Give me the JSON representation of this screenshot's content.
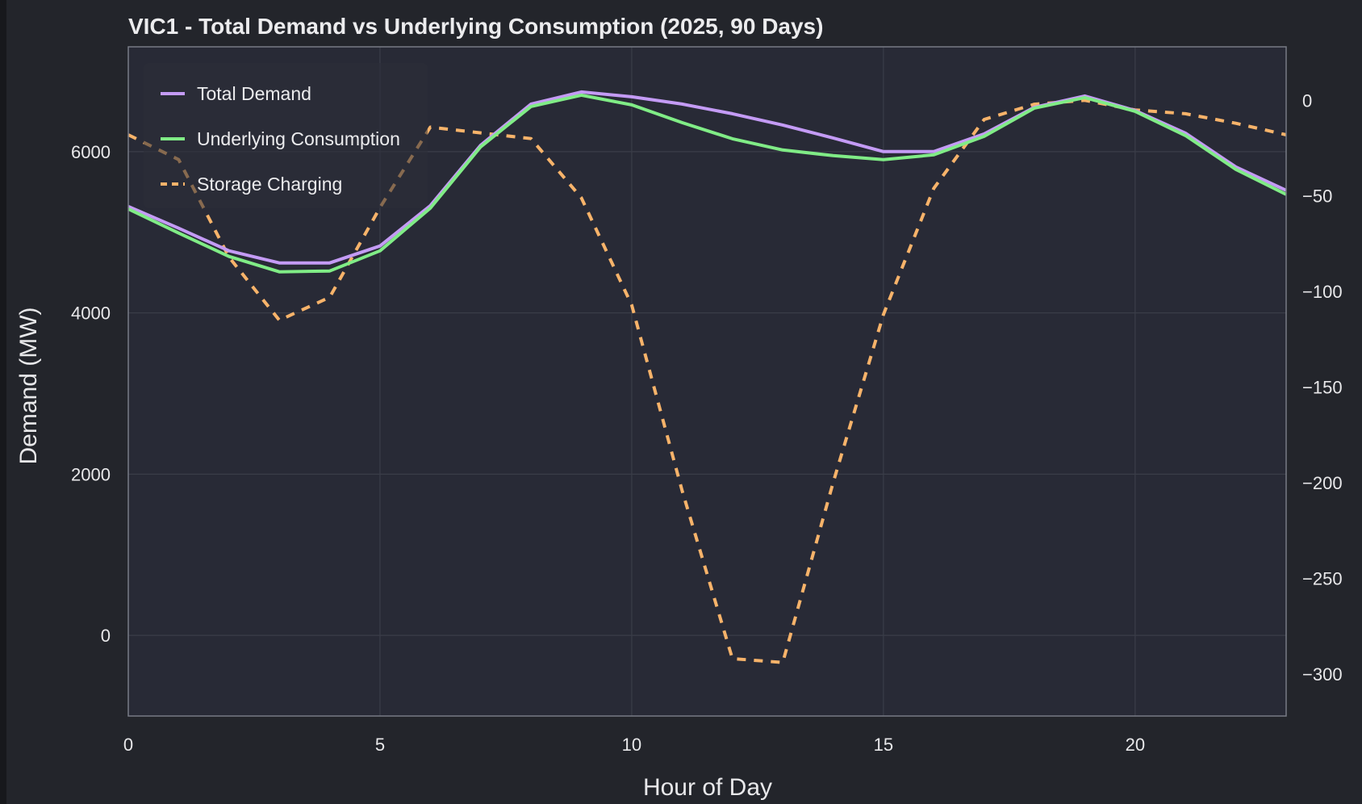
{
  "chart_data": {
    "type": "line",
    "title": "VIC1 - Total Demand vs Underlying Consumption (2025, 90 Days)",
    "xlabel": "Hour of Day",
    "ylabel": "Demand (MW)",
    "y2label": "",
    "xlim": [
      0,
      23
    ],
    "ylim": [
      -1000,
      7300
    ],
    "y2lim": [
      -322,
      28
    ],
    "xticks": [
      "0",
      "5",
      "10",
      "15",
      "20"
    ],
    "yticks": [
      "0",
      "2000",
      "4000",
      "6000"
    ],
    "y2ticks": [
      "0",
      "−50",
      "−100",
      "−150",
      "−200",
      "−250",
      "−300"
    ],
    "grid": true,
    "legend_position": "top-left",
    "x": [
      0,
      1,
      2,
      3,
      4,
      5,
      6,
      7,
      8,
      9,
      10,
      11,
      12,
      13,
      14,
      15,
      16,
      17,
      18,
      19,
      20,
      21,
      22,
      23
    ],
    "series": [
      {
        "name": "Total Demand",
        "axis": "left",
        "color": "#c49bf5",
        "style": "solid",
        "values": [
          5320,
          5050,
          4770,
          4620,
          4620,
          4830,
          5330,
          6080,
          6590,
          6740,
          6680,
          6590,
          6470,
          6330,
          6170,
          6000,
          6000,
          6220,
          6550,
          6690,
          6510,
          6230,
          5810,
          5520
        ]
      },
      {
        "name": "Underlying Consumption",
        "axis": "left",
        "color": "#80ec86",
        "style": "solid",
        "values": [
          5290,
          4990,
          4700,
          4510,
          4520,
          4770,
          5300,
          6060,
          6560,
          6700,
          6580,
          6360,
          6160,
          6020,
          5950,
          5900,
          5960,
          6190,
          6540,
          6670,
          6500,
          6200,
          5780,
          5470
        ]
      },
      {
        "name": "Storage Charging",
        "axis": "right",
        "color": "#f7b36a",
        "style": "dashed",
        "values": [
          -18,
          -31,
          -82,
          -115,
          -103,
          -56,
          -14,
          -17,
          -20,
          -51,
          -107,
          -204,
          -292,
          -294,
          -200,
          -112,
          -46,
          -10,
          -2,
          0,
          -5,
          -7,
          -12,
          -18
        ]
      }
    ]
  }
}
